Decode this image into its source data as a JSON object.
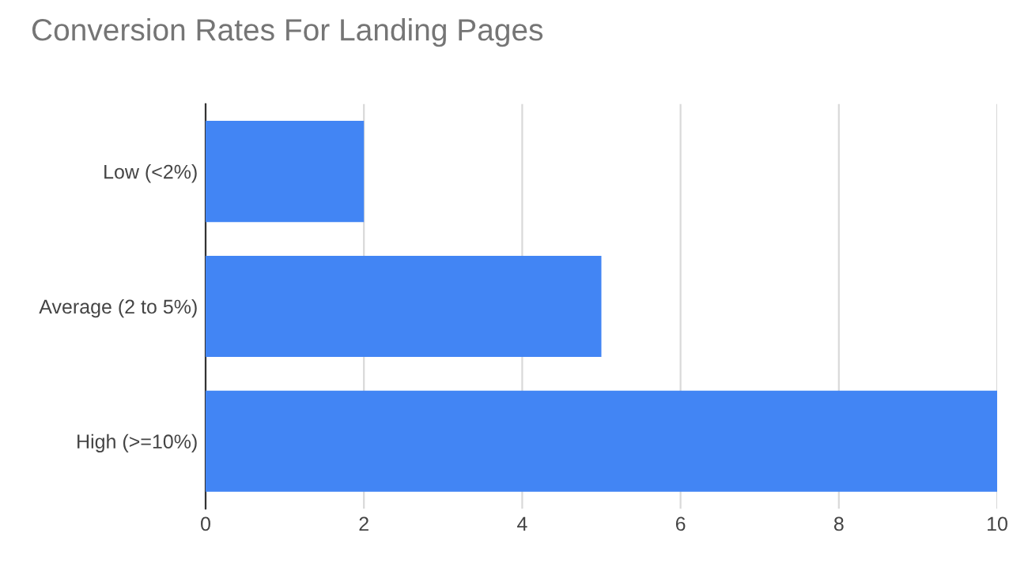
{
  "chart_data": {
    "type": "bar",
    "orientation": "horizontal",
    "title": "Conversion Rates For Landing Pages",
    "categories": [
      "Low (<2%)",
      "Average (2 to 5%)",
      "High (>=10%)"
    ],
    "values": [
      2,
      5,
      10
    ],
    "color": "#4285f4",
    "xlim": [
      0,
      10
    ],
    "xticks": [
      0,
      2,
      4,
      6,
      8,
      10
    ],
    "grid": "x"
  }
}
